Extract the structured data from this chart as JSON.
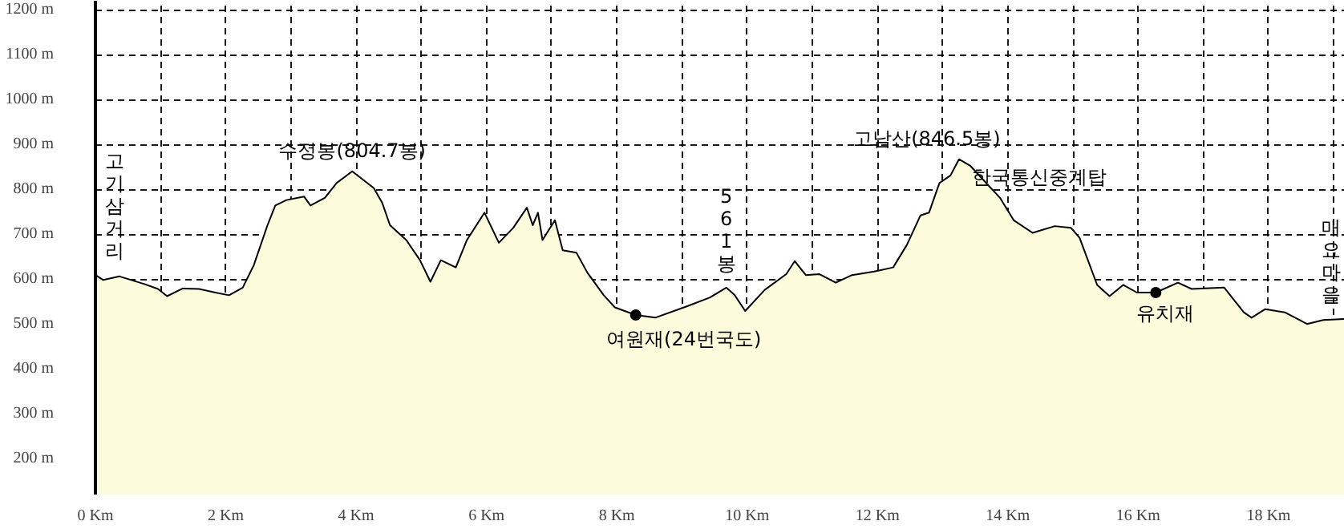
{
  "chart_data": {
    "type": "area",
    "x": [
      0,
      0.12,
      0.37,
      0.75,
      0.96,
      1.1,
      1.34,
      1.59,
      1.84,
      2.05,
      2.26,
      2.43,
      2.64,
      2.76,
      2.93,
      3.2,
      3.3,
      3.52,
      3.7,
      3.94,
      4.27,
      4.4,
      4.52,
      4.77,
      4.98,
      5.14,
      5.3,
      5.53,
      5.7,
      5.97,
      6.19,
      6.41,
      6.62,
      6.71,
      6.79,
      6.86,
      7.05,
      7.17,
      7.38,
      7.55,
      7.8,
      7.97,
      8.29,
      8.59,
      9.09,
      9.43,
      9.68,
      9.81,
      9.97,
      10.27,
      10.6,
      10.73,
      10.9,
      11.11,
      11.36,
      11.61,
      11.95,
      12.24,
      12.45,
      12.66,
      12.79,
      12.95,
      13.12,
      13.25,
      13.42,
      13.63,
      13.88,
      14.09,
      14.38,
      14.72,
      14.97,
      15.1,
      15.37,
      15.56,
      15.77,
      15.98,
      16.27,
      16.61,
      16.82,
      17.32,
      17.62,
      17.74,
      17.95,
      18.25,
      18.59,
      18.84,
      19.16
    ],
    "series": [
      {
        "color": "#fcfcdc",
        "values": [
          609,
          598,
          606,
          589,
          578,
          562,
          579,
          578,
          570,
          564,
          581,
          631,
          720,
          764,
          776,
          784,
          764,
          781,
          814,
          840,
          803,
          770,
          720,
          687,
          642,
          594,
          642,
          626,
          687,
          748,
          681,
          714,
          759,
          720,
          748,
          687,
          731,
          664,
          659,
          614,
          564,
          537,
          520,
          514,
          540,
          559,
          581,
          564,
          529,
          576,
          611,
          640,
          609,
          611,
          592,
          609,
          617,
          626,
          676,
          742,
          748,
          814,
          831,
          867,
          853,
          820,
          781,
          731,
          703,
          718,
          714,
          692,
          587,
          562,
          587,
          570,
          570,
          592,
          578,
          581,
          526,
          514,
          533,
          526,
          500,
          509,
          511
        ]
      },
      {
        "type": "scatter",
        "marker": "circle",
        "x": [
          8.29,
          16.27
        ],
        "color": "#000000",
        "values": [
          520,
          570
        ]
      }
    ],
    "xlim": [
      0,
      19.17
    ],
    "ylim": [
      120,
      1220
    ],
    "xticks": [
      {
        "value": 0,
        "label": "0 Km"
      },
      {
        "value": 1,
        "label": null
      },
      {
        "value": 2,
        "label": "2 Km"
      },
      {
        "value": 3,
        "label": null
      },
      {
        "value": 4,
        "label": "4 Km"
      },
      {
        "value": 5,
        "label": null
      },
      {
        "value": 6,
        "label": "6 Km"
      },
      {
        "value": 7,
        "label": null
      },
      {
        "value": 8,
        "label": "8 Km"
      },
      {
        "value": 9,
        "label": null
      },
      {
        "value": 10,
        "label": "10 Km"
      },
      {
        "value": 11,
        "label": null
      },
      {
        "value": 12,
        "label": "12 Km"
      },
      {
        "value": 13,
        "label": null
      },
      {
        "value": 14,
        "label": "14 Km"
      },
      {
        "value": 15,
        "label": null
      },
      {
        "value": 16,
        "label": "16 Km"
      },
      {
        "value": 17,
        "label": null
      },
      {
        "value": 18,
        "label": "18 Km"
      },
      {
        "value": 19,
        "label": null
      }
    ],
    "yticks": [
      {
        "value": 200,
        "label": "200 m"
      },
      {
        "value": 300,
        "label": "300 m"
      },
      {
        "value": 400,
        "label": "400 m"
      },
      {
        "value": 500,
        "label": "500 m"
      },
      {
        "value": 600,
        "label": "600 m"
      },
      {
        "value": 700,
        "label": "700 m"
      },
      {
        "value": 800,
        "label": "800 m"
      },
      {
        "value": 900,
        "label": "900 m"
      },
      {
        "value": 1000,
        "label": "1000 m"
      },
      {
        "value": 1100,
        "label": "1100 m"
      },
      {
        "value": 1200,
        "label": "1200 m"
      }
    ],
    "grid": true,
    "annotations": [
      {
        "text": "고기삼거리",
        "x": 0,
        "y": 609
      },
      {
        "text": "수정봉(804.7봉)",
        "x": 3.94,
        "y": 840
      },
      {
        "text": "여원재(24번국도)",
        "x": 8.29,
        "y": 520
      },
      {
        "text": "561봉",
        "x": 9.68,
        "y": 581
      },
      {
        "text": "고남산(846.5봉)",
        "x": 13.25,
        "y": 867
      },
      {
        "text": "한국통신중계탑",
        "x": 13.25,
        "y": 867
      },
      {
        "text": "유치재",
        "x": 16.27,
        "y": 570
      },
      {
        "text": "매요마을",
        "x": 19.16,
        "y": 511
      }
    ]
  }
}
